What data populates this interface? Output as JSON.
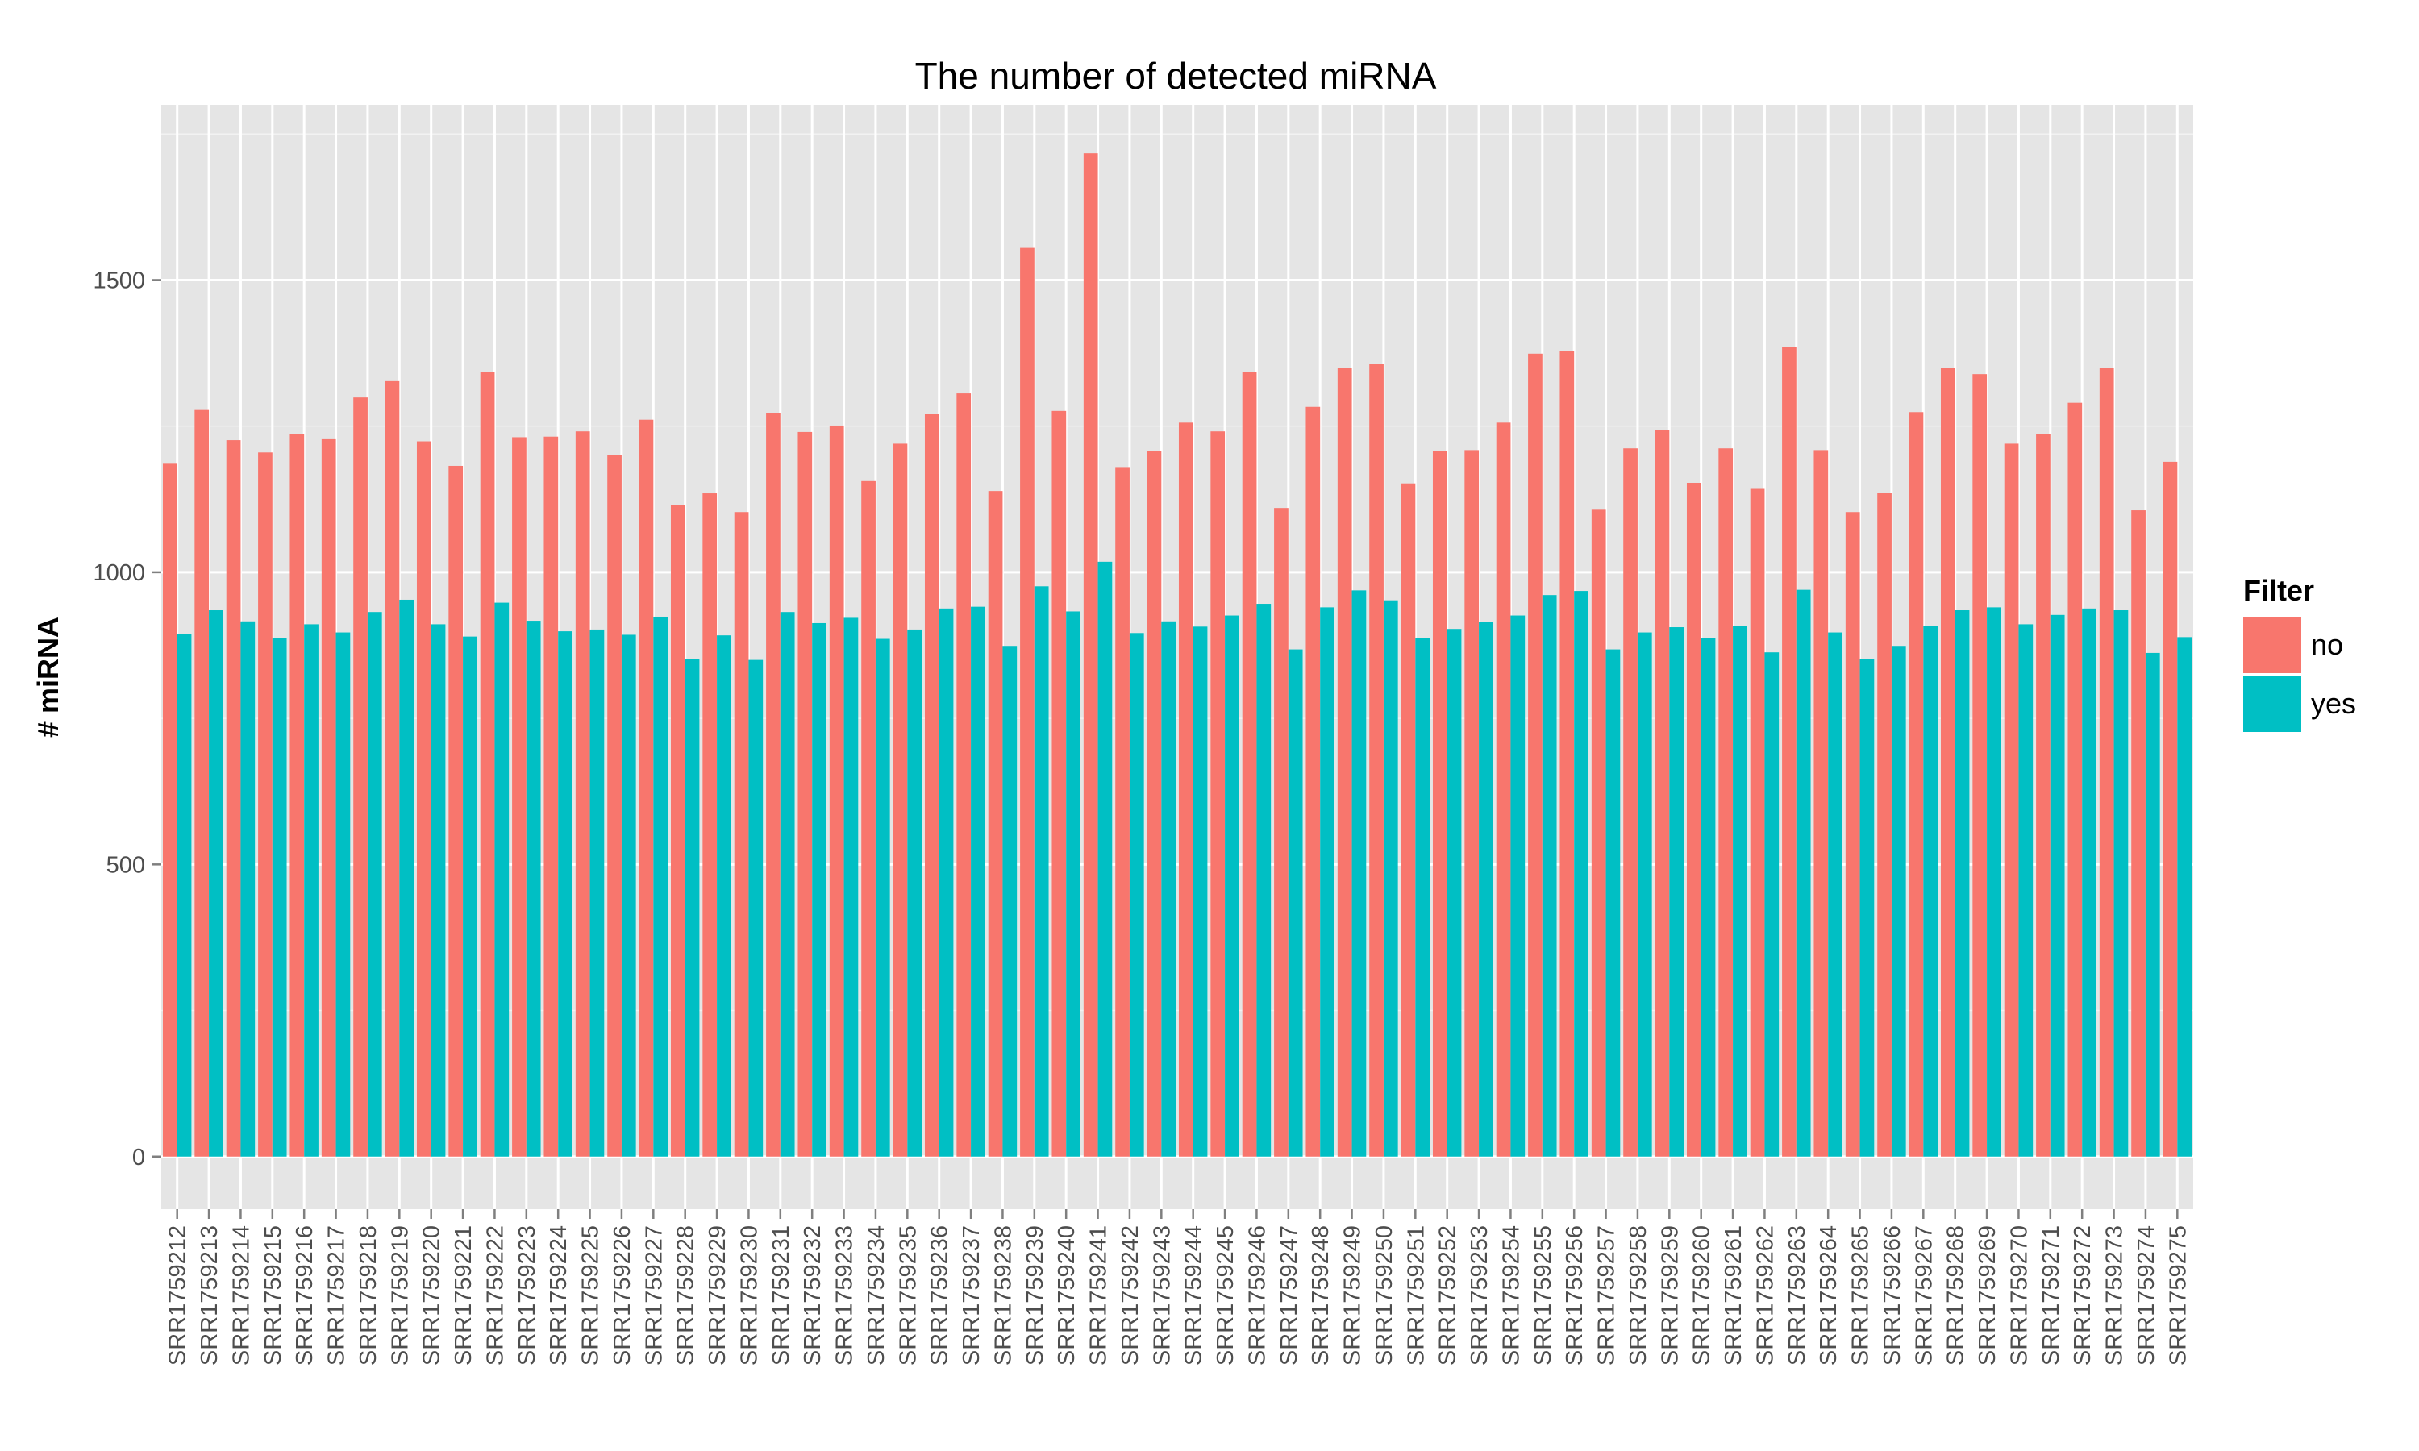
{
  "chart_data": {
    "type": "bar",
    "title": "The number of detected miRNA",
    "xlabel": "",
    "ylabel": "# miRNA",
    "ylim": [
      -90,
      1800
    ],
    "yticks": [
      0,
      500,
      1000,
      1500
    ],
    "grid": true,
    "legend": {
      "title": "Filter",
      "placement": "right",
      "entries": [
        "no",
        "yes"
      ]
    },
    "categories": [
      "SRR1759212",
      "SRR1759213",
      "SRR1759214",
      "SRR1759215",
      "SRR1759216",
      "SRR1759217",
      "SRR1759218",
      "SRR1759219",
      "SRR1759220",
      "SRR1759221",
      "SRR1759222",
      "SRR1759223",
      "SRR1759224",
      "SRR1759225",
      "SRR1759226",
      "SRR1759227",
      "SRR1759228",
      "SRR1759229",
      "SRR1759230",
      "SRR1759231",
      "SRR1759232",
      "SRR1759233",
      "SRR1759234",
      "SRR1759235",
      "SRR1759236",
      "SRR1759237",
      "SRR1759238",
      "SRR1759239",
      "SRR1759240",
      "SRR1759241",
      "SRR1759242",
      "SRR1759243",
      "SRR1759244",
      "SRR1759245",
      "SRR1759246",
      "SRR1759247",
      "SRR1759248",
      "SRR1759249",
      "SRR1759250",
      "SRR1759251",
      "SRR1759252",
      "SRR1759253",
      "SRR1759254",
      "SRR1759255",
      "SRR1759256",
      "SRR1759257",
      "SRR1759258",
      "SRR1759259",
      "SRR1759260",
      "SRR1759261",
      "SRR1759262",
      "SRR1759263",
      "SRR1759264",
      "SRR1759265",
      "SRR1759266",
      "SRR1759267",
      "SRR1759268",
      "SRR1759269",
      "SRR1759270",
      "SRR1759271",
      "SRR1759272",
      "SRR1759273",
      "SRR1759274",
      "SRR1759275"
    ],
    "series": [
      {
        "name": "no",
        "color": "#F8766D",
        "values": [
          1187,
          1279,
          1226,
          1205,
          1237,
          1229,
          1299,
          1327,
          1224,
          1182,
          1342,
          1231,
          1232,
          1241,
          1200,
          1261,
          1115,
          1135,
          1103,
          1273,
          1240,
          1251,
          1156,
          1220,
          1271,
          1306,
          1139,
          1555,
          1276,
          1717,
          1180,
          1208,
          1256,
          1241,
          1343,
          1110,
          1283,
          1350,
          1357,
          1152,
          1208,
          1209,
          1256,
          1374,
          1379,
          1107,
          1212,
          1244,
          1153,
          1212,
          1144,
          1385,
          1209,
          1103,
          1136,
          1274,
          1349,
          1339,
          1220,
          1237,
          1290,
          1349,
          1106,
          1189
        ]
      },
      {
        "name": "yes",
        "color": "#00BFC4",
        "values": [
          895,
          935,
          916,
          888,
          911,
          897,
          932,
          953,
          911,
          890,
          948,
          917,
          899,
          902,
          893,
          924,
          852,
          892,
          850,
          932,
          913,
          922,
          886,
          902,
          938,
          941,
          874,
          976,
          933,
          1018,
          896,
          916,
          907,
          926,
          946,
          868,
          940,
          969,
          952,
          887,
          903,
          915,
          926,
          961,
          968,
          868,
          897,
          906,
          888,
          908,
          863,
          970,
          897,
          852,
          874,
          908,
          935,
          940,
          911,
          927,
          938,
          935,
          862,
          889
        ]
      }
    ]
  }
}
